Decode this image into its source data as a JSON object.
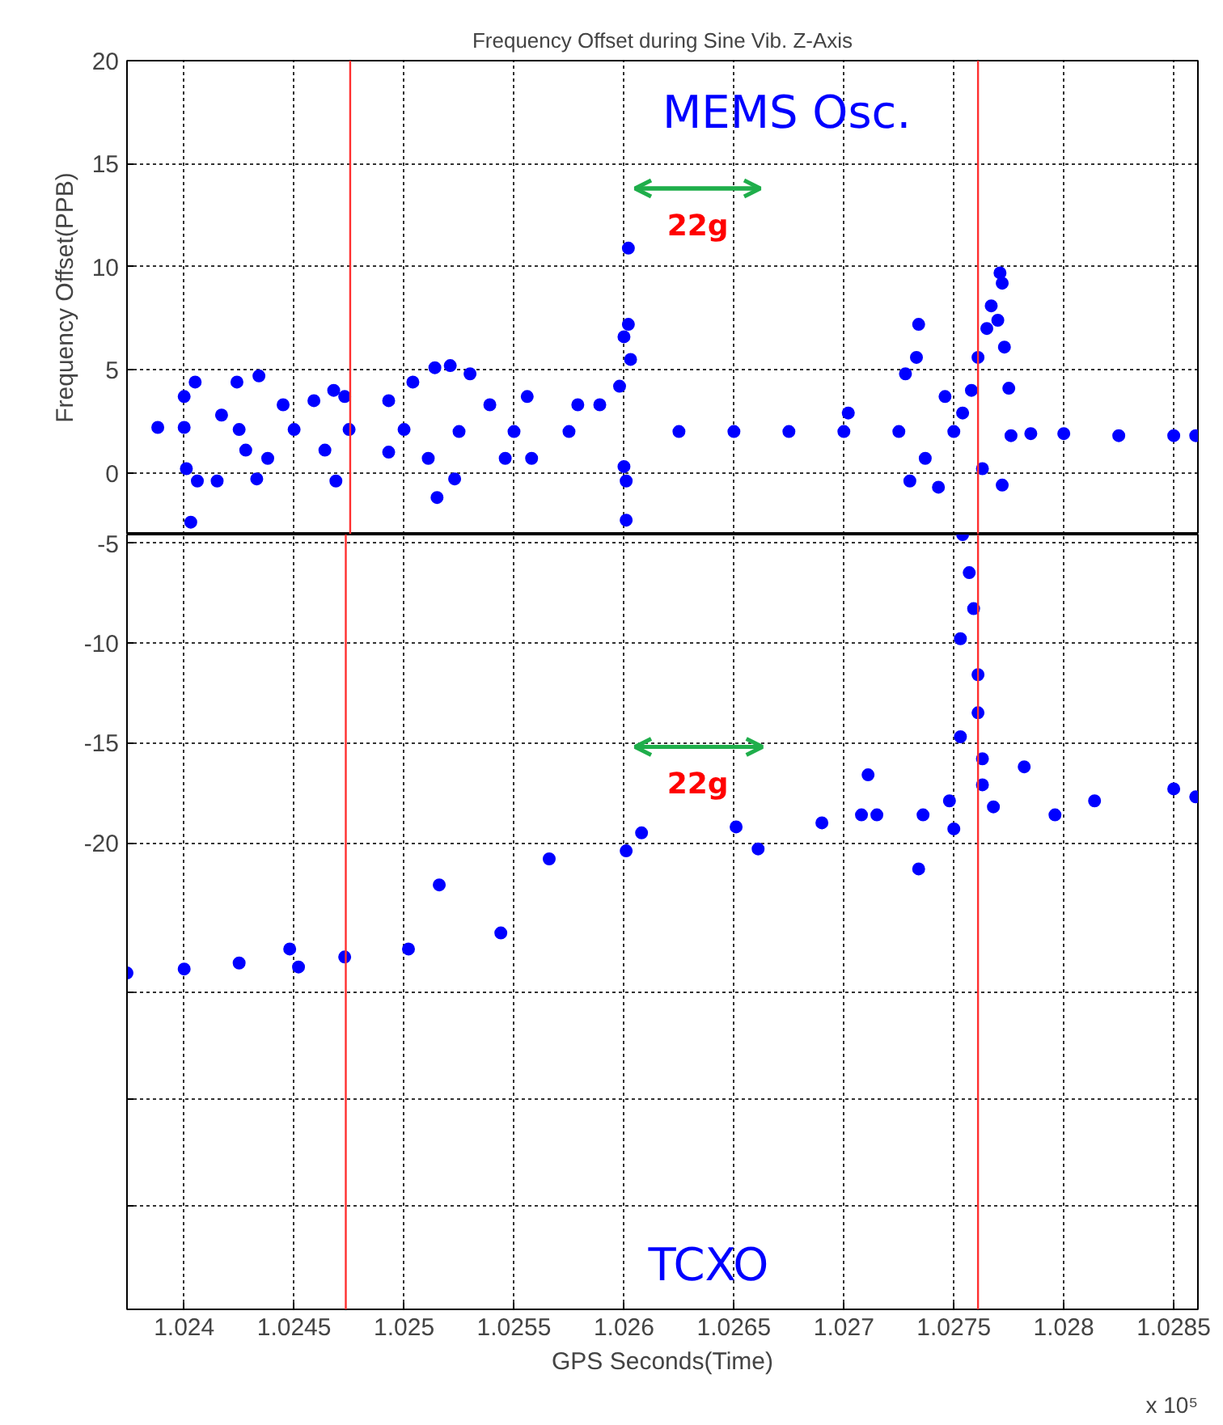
{
  "chart_data": [
    {
      "type": "scatter",
      "title": "Frequency Offset during Sine Vib. Z-Axis",
      "ylabel": "Frequency Offset(PPB)",
      "marker": "circle",
      "grid": true,
      "tick_labels": "y",
      "xlim": [
        1.02374,
        1.02861
      ],
      "ylim": [
        -3.0,
        20
      ],
      "xticks": [
        1.024,
        1.0245,
        1.025,
        1.0255,
        1.026,
        1.0265,
        1.027,
        1.0275,
        1.028,
        1.0285
      ],
      "yticks": [
        0,
        5,
        10,
        15,
        20
      ],
      "series": [
        {
          "color": "#0000ff",
          "x": [
            1.02388,
            1.024,
            1.02403,
            1.02401,
            1.02406,
            1.024,
            1.02405,
            1.02417,
            1.02424,
            1.02425,
            1.02434,
            1.02428,
            1.02415,
            1.02433,
            1.02445,
            1.02438,
            1.0245,
            1.02459,
            1.02468,
            1.02469,
            1.02473,
            1.02464,
            1.02475,
            1.02493,
            1.02493,
            1.025,
            1.02504,
            1.02514,
            1.02521,
            1.0253,
            1.02515,
            1.02523,
            1.02511,
            1.02525,
            1.02539,
            1.02546,
            1.0255,
            1.02558,
            1.02556,
            1.02575,
            1.02579,
            1.02589,
            1.02598,
            1.026,
            1.02602,
            1.02602,
            1.02603,
            1.026,
            1.02601,
            1.02601,
            1.02625,
            1.0265,
            1.02675,
            1.027,
            1.02702,
            1.02725,
            1.02728,
            1.02734,
            1.02733,
            1.0273,
            1.02743,
            1.02746,
            1.02737,
            1.0275,
            1.02754,
            1.02758,
            1.02761,
            1.02765,
            1.02767,
            1.02771,
            1.02772,
            1.0277,
            1.02773,
            1.02775,
            1.02763,
            1.02772,
            1.02776,
            1.02785,
            1.028,
            1.02825,
            1.0285,
            1.0286
          ],
          "values": [
            2.2,
            2.2,
            -2.4,
            0.2,
            -0.4,
            3.7,
            4.4,
            2.8,
            4.4,
            2.1,
            4.7,
            1.1,
            -0.4,
            -0.3,
            3.3,
            0.7,
            2.1,
            3.5,
            4.0,
            -0.4,
            3.7,
            1.1,
            2.1,
            3.5,
            1.0,
            2.1,
            4.4,
            5.1,
            5.2,
            4.8,
            -1.2,
            -0.3,
            0.7,
            2.0,
            3.3,
            0.7,
            2.0,
            0.7,
            3.7,
            2.0,
            3.3,
            3.3,
            4.2,
            6.6,
            7.2,
            10.9,
            5.5,
            0.3,
            -0.4,
            -2.3,
            2.0,
            2.0,
            2.0,
            2.0,
            2.9,
            2.0,
            4.8,
            7.2,
            5.6,
            -0.4,
            -0.7,
            3.7,
            0.7,
            2.0,
            2.9,
            4.0,
            5.6,
            7.0,
            8.1,
            9.7,
            9.2,
            7.4,
            6.1,
            4.1,
            0.2,
            -0.6,
            1.8,
            1.9,
            1.9,
            1.8,
            1.8,
            1.8
          ]
        },
        {
          "type": "line",
          "marker": "none",
          "color": "#1fae4b",
          "x": [
            1.02605,
            1.02662
          ],
          "values": [
            13.8,
            13.8
          ]
        }
      ],
      "ref_lines": [
        {
          "axis": "x",
          "value": 1.024755,
          "color": "#ff3030"
        },
        {
          "axis": "x",
          "value": 1.02761,
          "color": "#ff3030"
        }
      ],
      "annotations": [
        "MEMS Osc.",
        "22g"
      ]
    },
    {
      "type": "scatter",
      "xlabel": "GPS Seconds(Time)",
      "marker": "circle",
      "grid": true,
      "xlim": [
        1.02374,
        1.02861
      ],
      "ylim": [
        -43.3,
        -4.6
      ],
      "xticks": [
        1.024,
        1.0245,
        1.025,
        1.0255,
        1.026,
        1.0265,
        1.027,
        1.0275,
        1.028,
        1.0285
      ],
      "yticks": [
        -5,
        -10,
        -15,
        -20,
        {
          "value": -27.5,
          "label": null
        },
        {
          "value": -32.8,
          "label": null
        },
        {
          "value": -38.1,
          "label": null
        }
      ],
      "series": [
        {
          "color": "#0000ff",
          "x": [
            1.02374,
            1.024,
            1.02425,
            1.02448,
            1.02452,
            1.02473,
            1.02502,
            1.02516,
            1.02544,
            1.02566,
            1.02601,
            1.02608,
            1.02651,
            1.02661,
            1.0269,
            1.02708,
            1.02711,
            1.02715,
            1.02734,
            1.02736,
            1.02748,
            1.0275,
            1.02753,
            1.02753,
            1.02754,
            1.02757,
            1.02759,
            1.02761,
            1.02761,
            1.02763,
            1.02763,
            1.02768,
            1.02782,
            1.02796,
            1.02814,
            1.0285,
            1.0286
          ],
          "values": [
            -26.5,
            -26.3,
            -26.0,
            -25.3,
            -26.2,
            -25.7,
            -25.3,
            -22.1,
            -24.5,
            -20.8,
            -20.4,
            -19.5,
            -19.2,
            -20.3,
            -19.0,
            -18.6,
            -16.6,
            -18.6,
            -21.3,
            -18.6,
            -17.9,
            -19.3,
            -14.7,
            -9.8,
            -4.6,
            -6.5,
            -8.3,
            -11.6,
            -13.5,
            -15.8,
            -17.1,
            -18.2,
            -16.2,
            -18.6,
            -17.9,
            -17.3,
            -17.7
          ]
        },
        {
          "type": "line",
          "marker": "none",
          "color": "#1fae4b",
          "x": [
            1.02605,
            1.02663
          ],
          "values": [
            -15.2,
            -15.2
          ]
        }
      ],
      "ref_lines": [
        {
          "axis": "x",
          "value": 1.024735,
          "color": "#ff3030"
        },
        {
          "axis": "x",
          "value": 1.02761,
          "color": "#ff3030"
        }
      ],
      "annotations": [
        "22g",
        "TCXO",
        "x 10⁵"
      ]
    }
  ]
}
